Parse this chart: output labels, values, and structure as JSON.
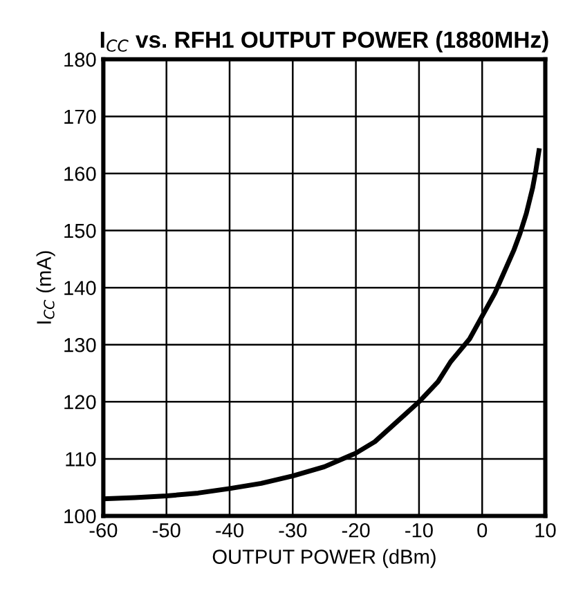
{
  "chart_data": {
    "type": "line",
    "title": "I$_{CC}$ vs. RFH1 OUTPUT POWER (1880MHz)",
    "xlabel": "OUTPUT POWER (dBm)",
    "ylabel": "I$_{CC}$ (mA)",
    "x": [
      -60,
      -55,
      -50,
      -45,
      -40,
      -35,
      -30,
      -25,
      -20,
      -17,
      -15,
      -12,
      -10,
      -7,
      -5,
      -2,
      0,
      2,
      3,
      5,
      6,
      7,
      8,
      8.5,
      9
    ],
    "series": [
      {
        "color": "#000000",
        "values": [
          103,
          103.2,
          103.5,
          104,
          104.8,
          105.7,
          107,
          108.6,
          111,
          113,
          115,
          118,
          120,
          123.5,
          127,
          131,
          135,
          139,
          141.5,
          146.5,
          149.5,
          153,
          157.5,
          160.5,
          164
        ]
      }
    ],
    "xlim": [
      -60,
      10
    ],
    "xticks": [
      -60,
      -50,
      -40,
      -30,
      -20,
      -10,
      0,
      10
    ],
    "ylim": [
      100,
      180
    ],
    "yticks": [
      100,
      110,
      120,
      130,
      140,
      150,
      160,
      170,
      180
    ],
    "grid": true,
    "legend": false,
    "marker": "none",
    "line_style": "solid"
  }
}
